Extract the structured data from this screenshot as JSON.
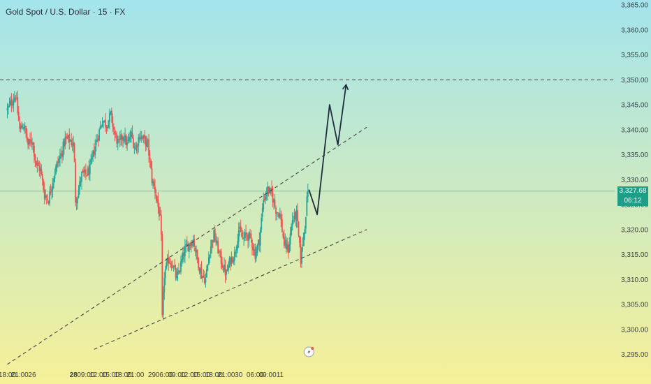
{
  "header": {
    "title": "Gold Spot / U.S. Dollar · 15 · FX"
  },
  "price_badge": {
    "price": "3,327.68",
    "countdown": "06:12"
  },
  "colors": {
    "bg_top": "#a3e4ec",
    "bg_bottom": "#f6f098",
    "up": "#26a69a",
    "down": "#ef5350",
    "last_price": "#1e9e86",
    "projection": "#1f2b3e",
    "dashed": "#444444"
  },
  "chart_data": {
    "type": "candlestick",
    "title": "Gold Spot / U.S. Dollar · 15 · FX",
    "ylim": [
      3292,
      3367
    ],
    "y_ticks": [
      3295,
      3300,
      3305,
      3310,
      3315,
      3320,
      3325,
      3330,
      3335,
      3340,
      3345,
      3350,
      3355,
      3360,
      3365
    ],
    "y_tick_labels": [
      "3,295.00",
      "3,300.00",
      "3,305.00",
      "3,310.00",
      "3,315.00",
      "3,320.00",
      "3,325.00",
      "3,330.00",
      "3,335.00",
      "3,340.00",
      "3,345.00",
      "3,350.00",
      "3,355.00",
      "3,360.00",
      "3,365.00"
    ],
    "x_tick_labels": [
      "18:00",
      "21:00",
      "26",
      "28",
      "09:00",
      "12:00",
      "15:00",
      "18:00",
      "21:00",
      "29",
      "06:00",
      "09:00",
      "12:00",
      "15:00",
      "18:00",
      "21:00",
      "30",
      "06:00",
      "09:00",
      "11"
    ],
    "bars_per_hour": 4,
    "first_bar_hour": 0,
    "total_hours": 206,
    "x_tick_hours": [
      0,
      3,
      6,
      16,
      19,
      22,
      25,
      28,
      31,
      35,
      38,
      41,
      44,
      47,
      50,
      53,
      56,
      60,
      63,
      66
    ],
    "close_path": [
      [
        0,
        3344
      ],
      [
        2,
        3347
      ],
      [
        3,
        3340
      ],
      [
        4,
        3341
      ],
      [
        5,
        3337
      ],
      [
        6,
        3338
      ],
      [
        7,
        3333
      ],
      [
        8,
        3332
      ],
      [
        9,
        3327
      ],
      [
        10,
        3326
      ],
      [
        11,
        3330
      ],
      [
        12,
        3333
      ],
      [
        13,
        3335
      ],
      [
        14,
        3338
      ],
      [
        15,
        3338
      ],
      [
        16,
        3337
      ],
      [
        16.25,
        3333
      ],
      [
        16.5,
        3326
      ],
      [
        17,
        3327
      ],
      [
        17.5,
        3329
      ],
      [
        18,
        3331
      ],
      [
        19,
        3331
      ],
      [
        20,
        3332
      ],
      [
        21,
        3336
      ],
      [
        22,
        3339
      ],
      [
        23,
        3342
      ],
      [
        24,
        3341
      ],
      [
        25,
        3343
      ],
      [
        26,
        3339
      ],
      [
        27,
        3337
      ],
      [
        28,
        3339
      ],
      [
        29,
        3337
      ],
      [
        30,
        3339
      ],
      [
        31,
        3336
      ],
      [
        32,
        3339
      ],
      [
        33,
        3338
      ],
      [
        34,
        3337
      ],
      [
        35,
        3330
      ],
      [
        36,
        3327
      ],
      [
        37,
        3322
      ],
      [
        37.25,
        3318
      ],
      [
        37.5,
        3302
      ],
      [
        38,
        3311
      ],
      [
        39,
        3314
      ],
      [
        40,
        3313
      ],
      [
        41,
        3310
      ],
      [
        42,
        3313
      ],
      [
        43,
        3316
      ],
      [
        44,
        3317
      ],
      [
        45,
        3318
      ],
      [
        46,
        3314
      ],
      [
        47,
        3311
      ],
      [
        48,
        3310
      ],
      [
        49,
        3316
      ],
      [
        50,
        3319
      ],
      [
        51,
        3316
      ],
      [
        52,
        3313
      ],
      [
        53,
        3311
      ],
      [
        54,
        3314
      ],
      [
        55,
        3315
      ],
      [
        56,
        3320
      ],
      [
        57,
        3318
      ],
      [
        58,
        3319
      ],
      [
        59,
        3318
      ],
      [
        60,
        3315
      ],
      [
        61,
        3318
      ],
      [
        62,
        3326
      ],
      [
        63,
        3328
      ],
      [
        64,
        3327
      ],
      [
        65,
        3324
      ],
      [
        66,
        3323
      ],
      [
        67,
        3317
      ],
      [
        68,
        3316
      ],
      [
        69,
        3322
      ],
      [
        70,
        3323
      ],
      [
        71,
        3314
      ],
      [
        72,
        3321
      ],
      [
        72.75,
        3328
      ]
    ],
    "last_price": 3327.68,
    "horizontal_level": 3350,
    "channel": {
      "upper": [
        [
          0,
          3293
        ],
        [
          87,
          3340.5
        ]
      ],
      "lower": [
        [
          21,
          3296
        ],
        [
          87,
          3320
        ]
      ]
    },
    "projection": [
      [
        73,
        3328
      ],
      [
        75,
        3323
      ],
      [
        78,
        3345
      ],
      [
        80,
        3337
      ],
      [
        82,
        3349
      ]
    ],
    "lightning_marker_hour": 73
  }
}
